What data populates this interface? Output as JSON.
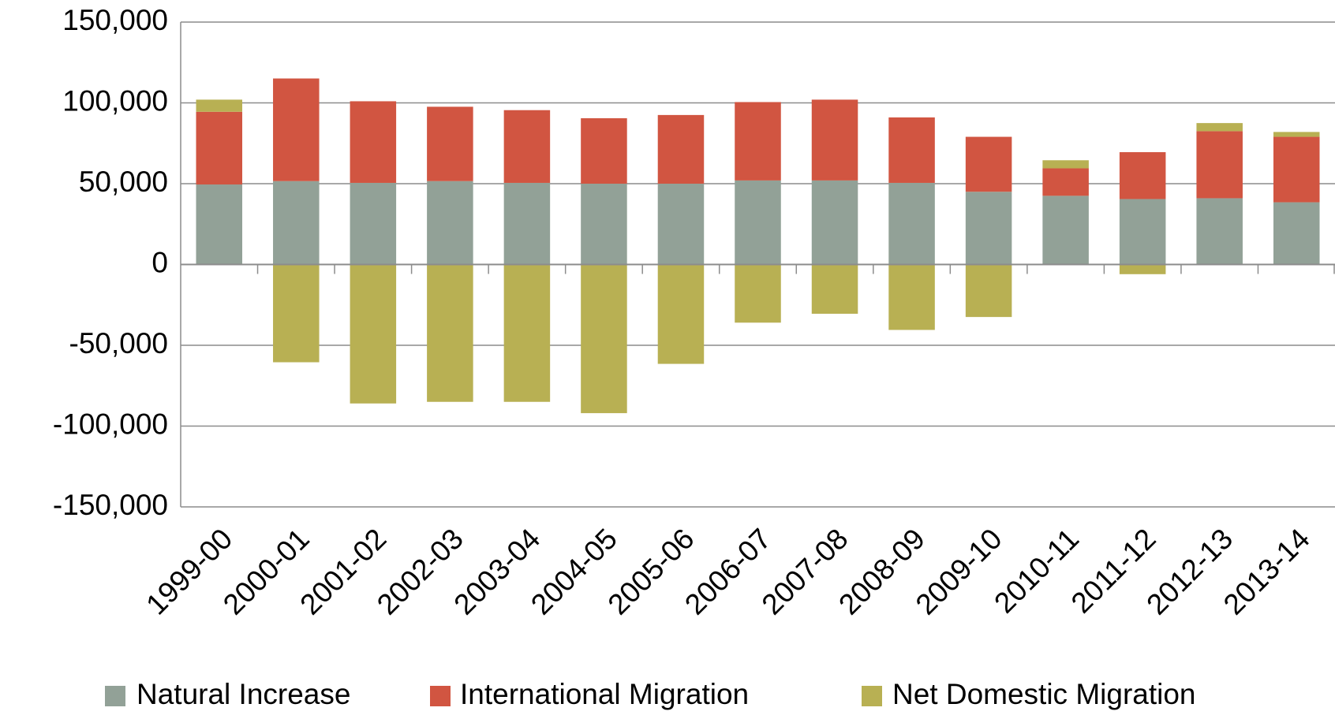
{
  "chart_data": {
    "type": "stacked-bar",
    "categories": [
      "1999-00",
      "2000-01",
      "2001-02",
      "2002-03",
      "2003-04",
      "2004-05",
      "2005-06",
      "2006-07",
      "2007-08",
      "2008-09",
      "2009-10",
      "2010-11",
      "2011-12",
      "2012-13",
      "2013-14"
    ],
    "series": [
      {
        "name": "Natural Increase",
        "color": "#92a197",
        "values": [
          49500,
          51600,
          50500,
          51600,
          50500,
          50000,
          50000,
          52000,
          52000,
          50500,
          45000,
          42500,
          40500,
          41000,
          38500
        ]
      },
      {
        "name": "International Migration",
        "color": "#d15541",
        "values": [
          45000,
          63500,
          50500,
          46000,
          45000,
          40500,
          42500,
          48500,
          50000,
          40500,
          34000,
          17000,
          29000,
          41500,
          40500
        ]
      },
      {
        "name": "Net Domestic Migration",
        "color": "#b8b053",
        "values": [
          7500,
          -60500,
          -86000,
          -85000,
          -85000,
          -92000,
          -61500,
          -36000,
          -30500,
          -40500,
          -32500,
          5000,
          -6000,
          5000,
          3000
        ]
      }
    ],
    "ylim": [
      -150000,
      150000
    ],
    "yticks": [
      {
        "value": -150000,
        "label": "-150,000"
      },
      {
        "value": -100000,
        "label": "-100,000"
      },
      {
        "value": -50000,
        "label": "-50,000"
      },
      0,
      {
        "value": 50000,
        "label": "50,000"
      },
      {
        "value": 100000,
        "label": "100,000"
      },
      {
        "value": 150000,
        "label": "150,000"
      }
    ],
    "grid": true,
    "legend": "bottom"
  }
}
